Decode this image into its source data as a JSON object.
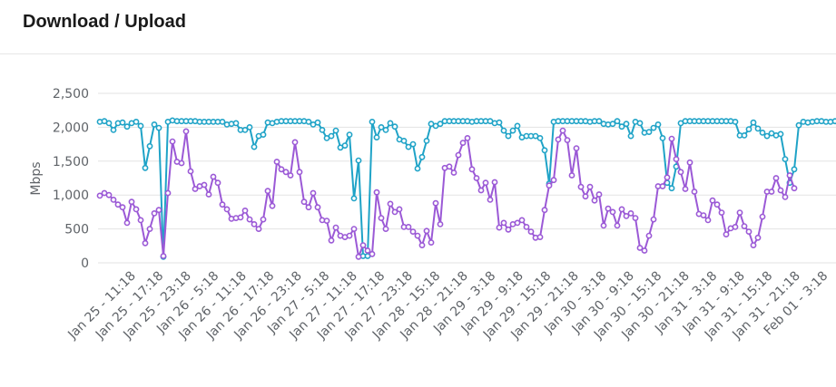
{
  "panel": {
    "title": "Download / Upload"
  },
  "colors": {
    "download": "#1fa3c7",
    "upload": "#9b59d6",
    "grid": "#e3e3e3"
  },
  "chart_data": {
    "type": "line",
    "title": "Download / Upload",
    "ylabel": "Mbps",
    "ylim": [
      0,
      2500
    ],
    "yticks": [
      0,
      500,
      1000,
      1500,
      2000,
      2500
    ],
    "ytick_labels": [
      "0",
      "500",
      "1,000",
      "1,500",
      "2,000",
      "2,500"
    ],
    "x_tick_labels": [
      "Jan 25 - 11:18",
      "Jan 25 - 17:18",
      "Jan 25 - 23:18",
      "Jan 26 - 5:18",
      "Jan 26 - 11:18",
      "Jan 26 - 17:18",
      "Jan 26 - 23:18",
      "Jan 27 - 5:18",
      "Jan 27 - 11:18",
      "Jan 27 - 17:18",
      "Jan 27 - 23:18",
      "Jan 28 - 15:18",
      "Jan 28 - 21:18",
      "Jan 29 - 3:18",
      "Jan 29 - 9:18",
      "Jan 29 - 15:18",
      "Jan 29 - 21:18",
      "Jan 30 - 3:18",
      "Jan 30 - 9:18",
      "Jan 30 - 15:18",
      "Jan 30 - 21:18",
      "Jan 31 - 3:18",
      "Jan 31 - 9:18",
      "Jan 31 - 15:18",
      "Jan 31 - 21:18",
      "Feb 01 - 3:18",
      "Feb 01 -",
      "Feb"
    ],
    "grid": true,
    "series": [
      {
        "id": "download",
        "values": [
          2080,
          2090,
          2060,
          1960,
          2060,
          2070,
          2010,
          2060,
          2080,
          2020,
          1400,
          1720,
          2040,
          1990,
          90,
          2080,
          2100,
          2090,
          2090,
          2090,
          2090,
          2090,
          2080,
          2080,
          2080,
          2080,
          2080,
          2080,
          2040,
          2050,
          2060,
          1960,
          1960,
          2000,
          1710,
          1870,
          1890,
          2070,
          2060,
          2080,
          2090,
          2090,
          2090,
          2090,
          2090,
          2090,
          2080,
          2040,
          2070,
          1960,
          1840,
          1870,
          1950,
          1700,
          1730,
          1890,
          950,
          1510,
          100,
          100,
          2080,
          1850,
          2000,
          1960,
          2060,
          2010,
          1820,
          1800,
          1710,
          1750,
          1390,
          1560,
          1800,
          2050,
          2020,
          2050,
          2090,
          2090,
          2090,
          2090,
          2090,
          2090,
          2080,
          2090,
          2090,
          2090,
          2090,
          2060,
          2070,
          1950,
          1870,
          1950,
          2020,
          1850,
          1870,
          1870,
          1870,
          1840,
          1660,
          1170,
          2080,
          2090,
          2090,
          2090,
          2090,
          2090,
          2090,
          2090,
          2080,
          2090,
          2090,
          2050,
          2040,
          2050,
          2090,
          2010,
          2050,
          1870,
          2080,
          2060,
          1920,
          1930,
          1990,
          2040,
          1840,
          1180,
          1100,
          1420,
          2060,
          2090,
          2090,
          2090,
          2090,
          2090,
          2090,
          2090,
          2090,
          2090,
          2090,
          2090,
          2080,
          1880,
          1880,
          1970,
          2070,
          1980,
          1920,
          1870,
          1910,
          1880,
          1900,
          1530,
          1180,
          1380,
          2030,
          2080,
          2070,
          2080,
          2090,
          2090,
          2080,
          2080,
          2090
        ]
      },
      {
        "id": "upload",
        "values": [
          990,
          1030,
          1000,
          930,
          860,
          820,
          590,
          900,
          790,
          630,
          290,
          500,
          730,
          780,
          100,
          1030,
          1790,
          1490,
          1470,
          1940,
          1350,
          1090,
          1130,
          1150,
          1010,
          1270,
          1180,
          860,
          790,
          650,
          660,
          670,
          770,
          640,
          570,
          500,
          640,
          1060,
          840,
          1490,
          1380,
          1340,
          1290,
          1780,
          1340,
          900,
          820,
          1030,
          820,
          630,
          620,
          330,
          520,
          400,
          380,
          400,
          500,
          90,
          260,
          180,
          130,
          1040,
          660,
          500,
          870,
          750,
          790,
          530,
          530,
          460,
          400,
          260,
          470,
          300,
          880,
          570,
          1400,
          1420,
          1330,
          1590,
          1770,
          1840,
          1380,
          1250,
          1070,
          1180,
          930,
          1190,
          520,
          590,
          490,
          570,
          590,
          630,
          530,
          460,
          370,
          380,
          780,
          1140,
          1220,
          1820,
          1950,
          1810,
          1290,
          1690,
          1120,
          980,
          1120,
          920,
          1010,
          550,
          800,
          750,
          550,
          790,
          690,
          730,
          660,
          220,
          180,
          400,
          640,
          1130,
          1130,
          1260,
          1830,
          1530,
          1340,
          1090,
          1480,
          1050,
          720,
          700,
          630,
          920,
          860,
          740,
          420,
          510,
          530,
          740,
          540,
          460,
          260,
          370,
          680,
          1050,
          1050,
          1250,
          1070,
          970,
          1290,
          1100
        ]
      }
    ]
  }
}
